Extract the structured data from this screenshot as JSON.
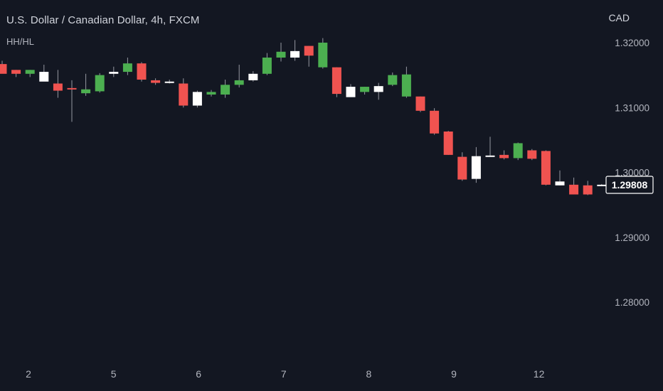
{
  "header": {
    "title": "U.S. Dollar / Canadian Dollar, 4h, FXCM",
    "indicator": "HH/HL",
    "currency": "CAD"
  },
  "colors": {
    "background": "#131722",
    "up": "#4caf50",
    "down": "#f05350",
    "neutral": "#ffffff",
    "wick": "#9598a1",
    "text": "#b2b5be"
  },
  "chart_data": {
    "type": "candlestick",
    "symbol": "USD/CAD",
    "interval": "4h",
    "source": "FXCM",
    "y_axis": {
      "ticks": [
        "1.32000",
        "1.31000",
        "1.30000",
        "1.29000",
        "1.28000"
      ],
      "tick_values": [
        1.32,
        1.31,
        1.3,
        1.29,
        1.28
      ],
      "range": [
        1.2725,
        1.3245
      ]
    },
    "x_axis": {
      "ticks": [
        "2",
        "5",
        "6",
        "7",
        "8",
        "9",
        "12"
      ],
      "tick_index": [
        2,
        8,
        14,
        20,
        26,
        32,
        38
      ]
    },
    "last_price": "1.29808",
    "last_price_value": 1.29808,
    "grid": false,
    "candles": [
      {
        "o": 1.3167,
        "h": 1.3172,
        "l": 1.3155,
        "c": 1.3152,
        "color": "down"
      },
      {
        "o": 1.3152,
        "h": 1.3158,
        "l": 1.3147,
        "c": 1.3158,
        "color": "down"
      },
      {
        "o": 1.3152,
        "h": 1.3158,
        "l": 1.3147,
        "c": 1.3158,
        "color": "up"
      },
      {
        "o": 1.3155,
        "h": 1.3166,
        "l": 1.3141,
        "c": 1.314,
        "color": "neutral"
      },
      {
        "o": 1.3137,
        "h": 1.3158,
        "l": 1.3115,
        "c": 1.3126,
        "color": "down"
      },
      {
        "o": 1.313,
        "h": 1.3142,
        "l": 1.3078,
        "c": 1.3128,
        "color": "down"
      },
      {
        "o": 1.3122,
        "h": 1.3152,
        "l": 1.3118,
        "c": 1.3128,
        "color": "up"
      },
      {
        "o": 1.3125,
        "h": 1.3153,
        "l": 1.3123,
        "c": 1.315,
        "color": "up"
      },
      {
        "o": 1.3152,
        "h": 1.3163,
        "l": 1.3147,
        "c": 1.3155,
        "color": "neutral"
      },
      {
        "o": 1.3155,
        "h": 1.3177,
        "l": 1.315,
        "c": 1.3168,
        "color": "up"
      },
      {
        "o": 1.3168,
        "h": 1.317,
        "l": 1.314,
        "c": 1.3143,
        "color": "down"
      },
      {
        "o": 1.3142,
        "h": 1.3145,
        "l": 1.3135,
        "c": 1.3138,
        "color": "down"
      },
      {
        "o": 1.314,
        "h": 1.3143,
        "l": 1.3137,
        "c": 1.3138,
        "color": "neutral"
      },
      {
        "o": 1.3137,
        "h": 1.3145,
        "l": 1.31,
        "c": 1.3103,
        "color": "down"
      },
      {
        "o": 1.3103,
        "h": 1.3126,
        "l": 1.31,
        "c": 1.3124,
        "color": "neutral"
      },
      {
        "o": 1.312,
        "h": 1.3127,
        "l": 1.3117,
        "c": 1.3124,
        "color": "up"
      },
      {
        "o": 1.312,
        "h": 1.3143,
        "l": 1.3115,
        "c": 1.3135,
        "color": "up"
      },
      {
        "o": 1.3135,
        "h": 1.3166,
        "l": 1.3131,
        "c": 1.3142,
        "color": "up"
      },
      {
        "o": 1.3142,
        "h": 1.3156,
        "l": 1.314,
        "c": 1.3152,
        "color": "neutral"
      },
      {
        "o": 1.3152,
        "h": 1.3184,
        "l": 1.315,
        "c": 1.3177,
        "color": "up"
      },
      {
        "o": 1.3177,
        "h": 1.32,
        "l": 1.3171,
        "c": 1.3186,
        "color": "up"
      },
      {
        "o": 1.3177,
        "h": 1.3204,
        "l": 1.3172,
        "c": 1.3187,
        "color": "neutral"
      },
      {
        "o": 1.3195,
        "h": 1.3195,
        "l": 1.3163,
        "c": 1.318,
        "color": "down"
      },
      {
        "o": 1.32,
        "h": 1.3207,
        "l": 1.316,
        "c": 1.3162,
        "color": "up"
      },
      {
        "o": 1.3162,
        "h": 1.3162,
        "l": 1.3116,
        "c": 1.3121,
        "color": "down"
      },
      {
        "o": 1.3132,
        "h": 1.3136,
        "l": 1.3117,
        "c": 1.3116,
        "color": "neutral"
      },
      {
        "o": 1.3124,
        "h": 1.3132,
        "l": 1.312,
        "c": 1.3132,
        "color": "up"
      },
      {
        "o": 1.3124,
        "h": 1.3138,
        "l": 1.3112,
        "c": 1.3133,
        "color": "neutral"
      },
      {
        "o": 1.3135,
        "h": 1.3154,
        "l": 1.3133,
        "c": 1.315,
        "color": "up"
      },
      {
        "o": 1.3151,
        "h": 1.3163,
        "l": 1.3115,
        "c": 1.3117,
        "color": "up"
      },
      {
        "o": 1.3117,
        "h": 1.3117,
        "l": 1.3093,
        "c": 1.3095,
        "color": "down"
      },
      {
        "o": 1.3095,
        "h": 1.3099,
        "l": 1.3058,
        "c": 1.306,
        "color": "down"
      },
      {
        "o": 1.3063,
        "h": 1.3064,
        "l": 1.3027,
        "c": 1.3027,
        "color": "down"
      },
      {
        "o": 1.3024,
        "h": 1.3031,
        "l": 1.2987,
        "c": 1.2989,
        "color": "down"
      },
      {
        "o": 1.299,
        "h": 1.3039,
        "l": 1.2984,
        "c": 1.3025,
        "color": "neutral"
      },
      {
        "o": 1.3025,
        "h": 1.3055,
        "l": 1.3025,
        "c": 1.3026,
        "color": "neutral"
      },
      {
        "o": 1.3027,
        "h": 1.3034,
        "l": 1.302,
        "c": 1.3022,
        "color": "down"
      },
      {
        "o": 1.3022,
        "h": 1.3046,
        "l": 1.3019,
        "c": 1.3045,
        "color": "up"
      },
      {
        "o": 1.3034,
        "h": 1.3036,
        "l": 1.3019,
        "c": 1.3021,
        "color": "down"
      },
      {
        "o": 1.3033,
        "h": 1.3034,
        "l": 1.298,
        "c": 1.2981,
        "color": "down"
      },
      {
        "o": 1.2986,
        "h": 1.3003,
        "l": 1.298,
        "c": 1.298,
        "color": "neutral"
      },
      {
        "o": 1.2981,
        "h": 1.2992,
        "l": 1.2966,
        "c": 1.2966,
        "color": "down"
      },
      {
        "o": 1.298,
        "h": 1.2987,
        "l": 1.2965,
        "c": 1.2966,
        "color": "down"
      },
      {
        "o": 1.2981,
        "h": 1.2982,
        "l": 1.2979,
        "c": 1.2981,
        "color": "neutral"
      }
    ]
  }
}
